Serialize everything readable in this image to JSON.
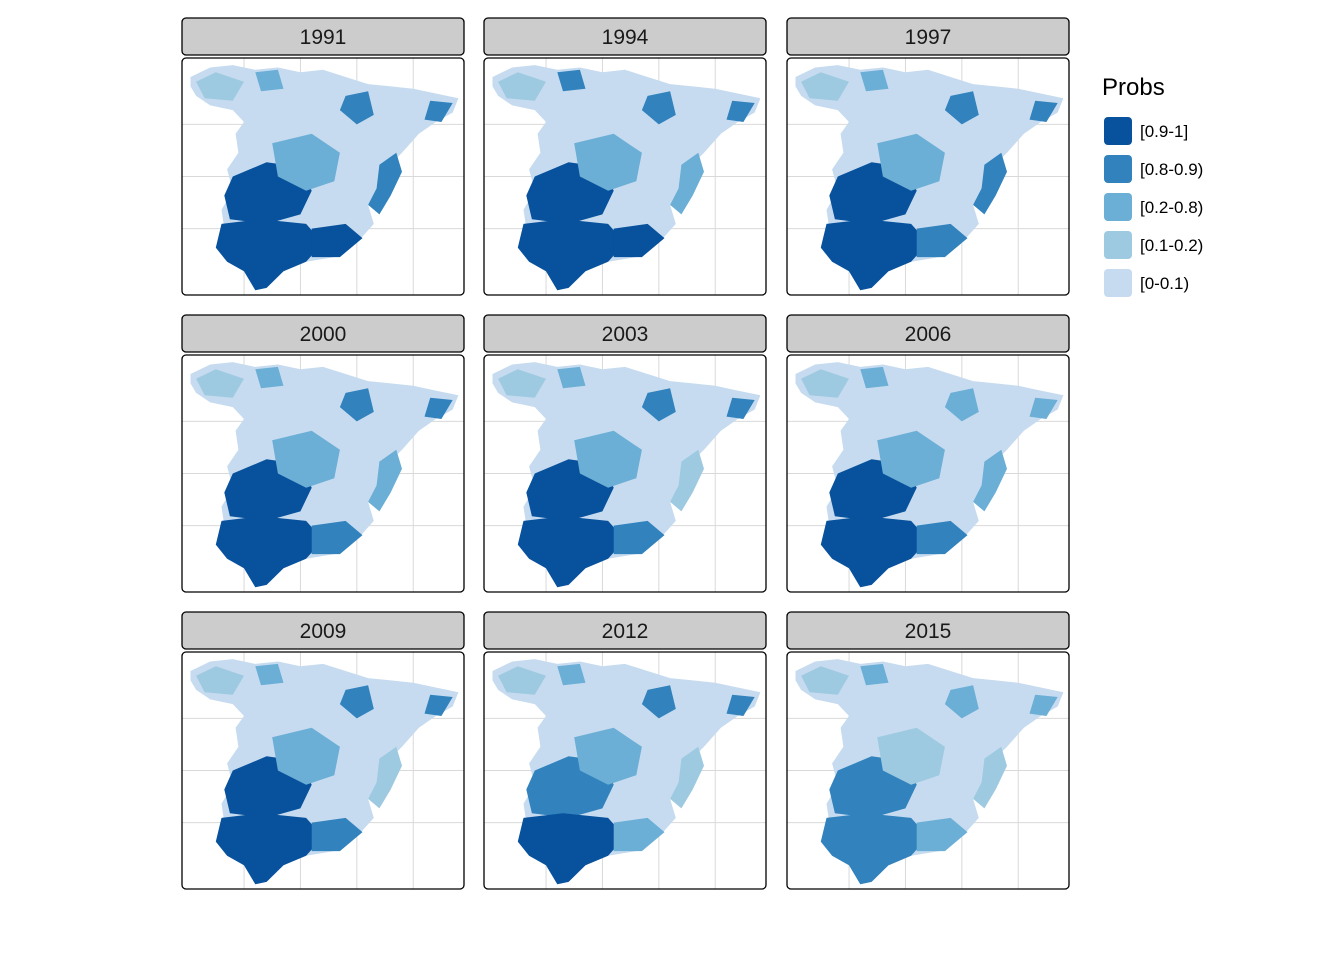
{
  "map": {
    "panels": [
      {
        "year": "1991",
        "levels": {
          "west": 4,
          "southwest": 4,
          "south": 4,
          "center": 2,
          "east": 3,
          "north": 1,
          "northeast": 3,
          "cantabria": 2
        }
      },
      {
        "year": "1994",
        "levels": {
          "west": 4,
          "southwest": 4,
          "south": 4,
          "center": 2,
          "east": 2,
          "north": 1,
          "northeast": 3,
          "cantabria": 3
        }
      },
      {
        "year": "1997",
        "levels": {
          "west": 4,
          "southwest": 4,
          "south": 3,
          "center": 2,
          "east": 3,
          "north": 1,
          "northeast": 3,
          "cantabria": 2
        }
      },
      {
        "year": "2000",
        "levels": {
          "west": 4,
          "southwest": 4,
          "south": 3,
          "center": 2,
          "east": 2,
          "north": 1,
          "northeast": 3,
          "cantabria": 2
        }
      },
      {
        "year": "2003",
        "levels": {
          "west": 4,
          "southwest": 4,
          "south": 3,
          "center": 2,
          "east": 1,
          "north": 1,
          "northeast": 3,
          "cantabria": 2
        }
      },
      {
        "year": "2006",
        "levels": {
          "west": 4,
          "southwest": 4,
          "south": 3,
          "center": 2,
          "east": 2,
          "north": 1,
          "northeast": 2,
          "cantabria": 2
        }
      },
      {
        "year": "2009",
        "levels": {
          "west": 4,
          "southwest": 4,
          "south": 3,
          "center": 2,
          "east": 1,
          "north": 1,
          "northeast": 3,
          "cantabria": 2
        }
      },
      {
        "year": "2012",
        "levels": {
          "west": 3,
          "southwest": 4,
          "south": 2,
          "center": 2,
          "east": 1,
          "north": 1,
          "northeast": 3,
          "cantabria": 2
        }
      },
      {
        "year": "2015",
        "levels": {
          "west": 3,
          "southwest": 3,
          "south": 2,
          "center": 1,
          "east": 1,
          "north": 1,
          "northeast": 2,
          "cantabria": 2
        }
      }
    ]
  },
  "legend": {
    "title": "Probs",
    "items": [
      {
        "label": "[0.9-1]",
        "color": "#08519c"
      },
      {
        "label": "[0.8-0.9)",
        "color": "#3182bd"
      },
      {
        "label": "[0.2-0.8)",
        "color": "#6baed6"
      },
      {
        "label": "[0.1-0.2)",
        "color": "#9ecae1"
      },
      {
        "label": "[0-0.1)",
        "color": "#c6dbef"
      }
    ]
  }
}
